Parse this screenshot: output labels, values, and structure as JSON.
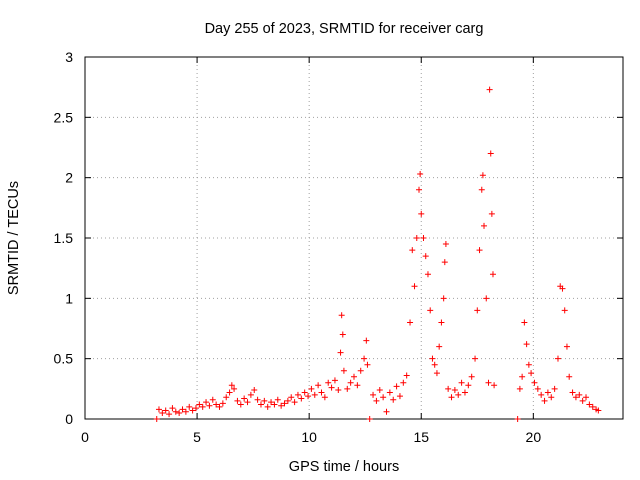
{
  "chart_data": {
    "type": "scatter",
    "title": "Day 255 of 2023, SRMTID for receiver carg",
    "xlabel": "GPS time / hours",
    "ylabel": "SRMTID / TECUs",
    "xlim": [
      0,
      24
    ],
    "ylim": [
      0,
      3
    ],
    "xticks": [
      0,
      5,
      10,
      15,
      20
    ],
    "yticks": [
      0,
      0.5,
      1,
      1.5,
      2,
      2.5,
      3
    ],
    "grid": true,
    "marker": "+",
    "color": "#ff0000",
    "series": [
      {
        "name": "SRMTID",
        "points": [
          [
            3.2,
            0.0
          ],
          [
            3.3,
            0.08
          ],
          [
            3.45,
            0.05
          ],
          [
            3.6,
            0.07
          ],
          [
            3.75,
            0.04
          ],
          [
            3.9,
            0.09
          ],
          [
            4.05,
            0.06
          ],
          [
            4.2,
            0.05
          ],
          [
            4.35,
            0.08
          ],
          [
            4.5,
            0.06
          ],
          [
            4.65,
            0.1
          ],
          [
            4.8,
            0.07
          ],
          [
            4.95,
            0.09
          ],
          [
            5.1,
            0.12
          ],
          [
            5.25,
            0.1
          ],
          [
            5.4,
            0.14
          ],
          [
            5.55,
            0.11
          ],
          [
            5.7,
            0.16
          ],
          [
            5.85,
            0.12
          ],
          [
            6.0,
            0.1
          ],
          [
            6.15,
            0.13
          ],
          [
            6.3,
            0.18
          ],
          [
            6.45,
            0.22
          ],
          [
            6.55,
            0.28
          ],
          [
            6.65,
            0.25
          ],
          [
            6.8,
            0.15
          ],
          [
            6.95,
            0.12
          ],
          [
            7.1,
            0.17
          ],
          [
            7.25,
            0.14
          ],
          [
            7.4,
            0.2
          ],
          [
            7.55,
            0.24
          ],
          [
            7.7,
            0.16
          ],
          [
            7.85,
            0.12
          ],
          [
            8.0,
            0.15
          ],
          [
            8.15,
            0.1
          ],
          [
            8.3,
            0.14
          ],
          [
            8.45,
            0.12
          ],
          [
            8.6,
            0.16
          ],
          [
            8.75,
            0.11
          ],
          [
            8.9,
            0.13
          ],
          [
            9.05,
            0.15
          ],
          [
            9.2,
            0.18
          ],
          [
            9.35,
            0.14
          ],
          [
            9.5,
            0.2
          ],
          [
            9.65,
            0.17
          ],
          [
            9.8,
            0.22
          ],
          [
            9.95,
            0.19
          ],
          [
            10.1,
            0.25
          ],
          [
            10.25,
            0.2
          ],
          [
            10.4,
            0.28
          ],
          [
            10.55,
            0.22
          ],
          [
            10.7,
            0.18
          ],
          [
            10.85,
            0.3
          ],
          [
            11.0,
            0.26
          ],
          [
            11.15,
            0.32
          ],
          [
            11.3,
            0.24
          ],
          [
            11.4,
            0.55
          ],
          [
            11.45,
            0.86
          ],
          [
            11.5,
            0.7
          ],
          [
            11.55,
            0.4
          ],
          [
            11.7,
            0.25
          ],
          [
            11.85,
            0.3
          ],
          [
            12.0,
            0.35
          ],
          [
            12.15,
            0.28
          ],
          [
            12.3,
            0.4
          ],
          [
            12.45,
            0.5
          ],
          [
            12.55,
            0.65
          ],
          [
            12.6,
            0.45
          ],
          [
            12.7,
            0.0
          ],
          [
            12.85,
            0.2
          ],
          [
            13.0,
            0.15
          ],
          [
            13.15,
            0.24
          ],
          [
            13.3,
            0.18
          ],
          [
            13.45,
            0.06
          ],
          [
            13.6,
            0.22
          ],
          [
            13.75,
            0.16
          ],
          [
            13.9,
            0.27
          ],
          [
            14.05,
            0.19
          ],
          [
            14.2,
            0.3
          ],
          [
            14.35,
            0.36
          ],
          [
            14.5,
            0.8
          ],
          [
            14.6,
            1.4
          ],
          [
            14.7,
            1.1
          ],
          [
            14.8,
            1.5
          ],
          [
            14.9,
            1.9
          ],
          [
            14.95,
            2.03
          ],
          [
            15.0,
            1.7
          ],
          [
            15.1,
            1.5
          ],
          [
            15.2,
            1.35
          ],
          [
            15.3,
            1.2
          ],
          [
            15.4,
            0.9
          ],
          [
            15.5,
            0.5
          ],
          [
            15.6,
            0.45
          ],
          [
            15.7,
            0.38
          ],
          [
            15.8,
            0.6
          ],
          [
            15.9,
            0.8
          ],
          [
            16.0,
            1.0
          ],
          [
            16.05,
            1.3
          ],
          [
            16.1,
            1.45
          ],
          [
            16.2,
            0.25
          ],
          [
            16.35,
            0.18
          ],
          [
            16.5,
            0.24
          ],
          [
            16.65,
            0.2
          ],
          [
            16.8,
            0.3
          ],
          [
            16.95,
            0.22
          ],
          [
            17.1,
            0.28
          ],
          [
            17.25,
            0.35
          ],
          [
            17.4,
            0.5
          ],
          [
            17.5,
            0.9
          ],
          [
            17.6,
            1.4
          ],
          [
            17.7,
            1.9
          ],
          [
            17.75,
            2.02
          ],
          [
            17.8,
            1.6
          ],
          [
            17.9,
            1.0
          ],
          [
            18.0,
            0.3
          ],
          [
            18.05,
            2.73
          ],
          [
            18.1,
            2.2
          ],
          [
            18.15,
            1.7
          ],
          [
            18.2,
            1.2
          ],
          [
            18.25,
            0.28
          ],
          [
            19.3,
            0.0
          ],
          [
            19.4,
            0.25
          ],
          [
            19.5,
            0.35
          ],
          [
            19.6,
            0.8
          ],
          [
            19.7,
            0.62
          ],
          [
            19.8,
            0.45
          ],
          [
            19.9,
            0.38
          ],
          [
            20.05,
            0.3
          ],
          [
            20.2,
            0.25
          ],
          [
            20.35,
            0.2
          ],
          [
            20.5,
            0.15
          ],
          [
            20.65,
            0.22
          ],
          [
            20.8,
            0.18
          ],
          [
            20.95,
            0.25
          ],
          [
            21.1,
            0.5
          ],
          [
            21.2,
            1.1
          ],
          [
            21.3,
            1.08
          ],
          [
            21.4,
            0.9
          ],
          [
            21.5,
            0.6
          ],
          [
            21.6,
            0.35
          ],
          [
            21.75,
            0.22
          ],
          [
            21.9,
            0.18
          ],
          [
            22.05,
            0.2
          ],
          [
            22.2,
            0.15
          ],
          [
            22.35,
            0.18
          ],
          [
            22.5,
            0.12
          ],
          [
            22.65,
            0.1
          ],
          [
            22.8,
            0.08
          ],
          [
            22.9,
            0.07
          ]
        ]
      }
    ]
  }
}
